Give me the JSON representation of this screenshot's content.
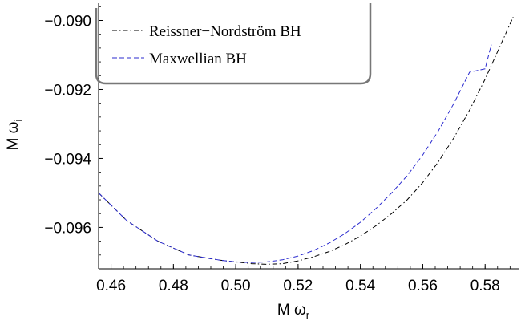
{
  "chart_data": {
    "type": "line",
    "xlabel": "M ω",
    "xlabel_sub": "r",
    "ylabel": "M ω",
    "ylabel_sub": "i",
    "xlim": [
      0.456,
      0.591
    ],
    "ylim": [
      -0.0972,
      -0.0895
    ],
    "x_ticks": [
      0.46,
      0.48,
      0.5,
      0.52,
      0.54,
      0.56,
      0.58
    ],
    "x_tick_labels": [
      "0.46",
      "0.48",
      "0.50",
      "0.52",
      "0.54",
      "0.56",
      "0.58"
    ],
    "y_ticks": [
      -0.09,
      -0.092,
      -0.094,
      -0.096
    ],
    "y_tick_labels": [
      "−0.090",
      "−0.092",
      "−0.094",
      "−0.096"
    ],
    "grid": false,
    "legend_position": "top-left",
    "series": [
      {
        "name": "Reissner−Nordström BH",
        "color": "#000000",
        "style": "dash-dot",
        "x": [
          0.456,
          0.465,
          0.475,
          0.485,
          0.495,
          0.505,
          0.51,
          0.515,
          0.52,
          0.525,
          0.53,
          0.535,
          0.54,
          0.545,
          0.55,
          0.555,
          0.56,
          0.565,
          0.57,
          0.575,
          0.58,
          0.585,
          0.589
        ],
        "y": [
          -0.095,
          -0.0958,
          -0.0964,
          -0.0968,
          -0.09695,
          -0.09705,
          -0.09707,
          -0.09705,
          -0.09697,
          -0.09685,
          -0.0967,
          -0.0965,
          -0.09625,
          -0.09595,
          -0.0956,
          -0.0952,
          -0.0947,
          -0.0941,
          -0.0934,
          -0.0926,
          -0.0917,
          -0.0907,
          -0.0899
        ]
      },
      {
        "name": "Maxwellian BH",
        "color": "#2b2bcf",
        "style": "dashed",
        "x": [
          0.456,
          0.465,
          0.475,
          0.485,
          0.495,
          0.5,
          0.505,
          0.51,
          0.515,
          0.52,
          0.525,
          0.53,
          0.535,
          0.54,
          0.545,
          0.55,
          0.555,
          0.56,
          0.565,
          0.57,
          0.575,
          0.58,
          0.582
        ],
        "y": [
          -0.095,
          -0.0958,
          -0.0964,
          -0.0968,
          -0.09695,
          -0.097,
          -0.09702,
          -0.097,
          -0.09694,
          -0.09683,
          -0.09667,
          -0.09645,
          -0.09618,
          -0.09585,
          -0.09545,
          -0.095,
          -0.0945,
          -0.0939,
          -0.0932,
          -0.0924,
          -0.0915,
          -0.0914,
          -0.0907
        ]
      }
    ]
  }
}
